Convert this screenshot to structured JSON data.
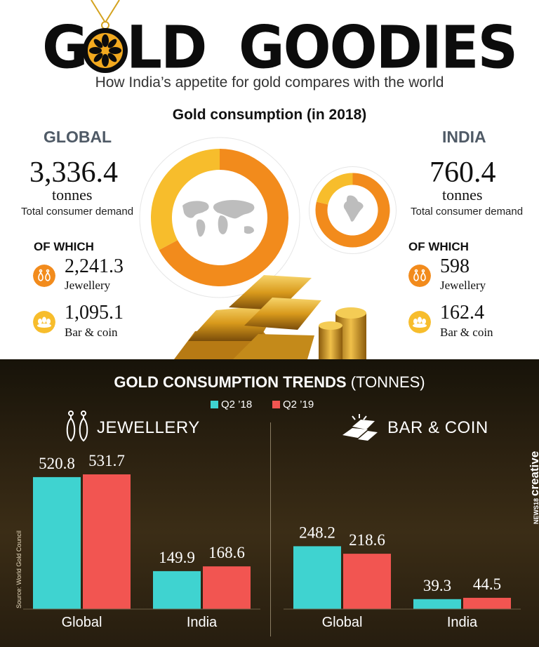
{
  "header": {
    "title_part1": "G",
    "title_part2": "LD",
    "title_part3": "GOODIES",
    "subtitle": "How India’s appetite for gold compares with the world",
    "chart_heading": "Gold consumption (in 2018)"
  },
  "global": {
    "label": "GLOBAL",
    "total": "3,336.4",
    "unit": "tonnes",
    "demand_label": "Total consumer demand",
    "of_which": "OF WHICH",
    "jewellery_value": "2,241.3",
    "jewellery_label": "Jewellery",
    "barcoin_value": "1,095.1",
    "barcoin_label": "Bar & coin"
  },
  "india": {
    "label": "INDIA",
    "total": "760.4",
    "unit": "tonnes",
    "demand_label": "Total consumer demand",
    "of_which": "OF WHICH",
    "jewellery_value": "598",
    "jewellery_label": "Jewellery",
    "barcoin_value": "162.4",
    "barcoin_label": "Bar & coin"
  },
  "colors": {
    "jewellery": "#f28b1c",
    "barcoin": "#f7bd2c",
    "q2_18": "#3fd3d0",
    "q2_19": "#f25551"
  },
  "icons": {
    "jewellery": "earring-icon",
    "barcoin": "coin-stack-icon",
    "trends_jewellery": "earring-icon",
    "trends_barcoin": "gold-bars-icon"
  },
  "trends": {
    "title_bold": "GOLD CONSUMPTION TRENDS",
    "title_rest": "(TONNES)",
    "legend": [
      "Q2 ’18",
      "Q2 ’19"
    ],
    "jewellery_title": "JEWELLERY",
    "barcoin_title": "BAR & COIN",
    "source": "Source: World Gold Council",
    "brand_small": "NEWS18",
    "brand": "creative"
  },
  "chart_data": [
    {
      "type": "pie",
      "title": "GLOBAL",
      "categories": [
        "Jewellery",
        "Bar & coin"
      ],
      "values": [
        2241.3,
        1095.1
      ],
      "total": 3336.4,
      "unit": "tonnes"
    },
    {
      "type": "pie",
      "title": "INDIA",
      "categories": [
        "Jewellery",
        "Bar & coin"
      ],
      "values": [
        598,
        162.4
      ],
      "total": 760.4,
      "unit": "tonnes"
    },
    {
      "type": "bar",
      "title": "JEWELLERY",
      "categories": [
        "Global",
        "India"
      ],
      "series": [
        {
          "name": "Q2 ’18",
          "values": [
            520.8,
            149.9
          ]
        },
        {
          "name": "Q2 ’19",
          "values": [
            531.7,
            168.6
          ]
        }
      ],
      "labels": [
        [
          "520.8",
          "531.7"
        ],
        [
          "149.9",
          "168.6"
        ]
      ]
    },
    {
      "type": "bar",
      "title": "BAR & COIN",
      "categories": [
        "Global",
        "India"
      ],
      "series": [
        {
          "name": "Q2 ’18",
          "values": [
            248.2,
            39.3
          ]
        },
        {
          "name": "Q2 ’19",
          "values": [
            218.6,
            44.5
          ]
        }
      ],
      "labels": [
        [
          "248.2",
          "218.6"
        ],
        [
          "39.3",
          "44.5"
        ]
      ]
    }
  ]
}
